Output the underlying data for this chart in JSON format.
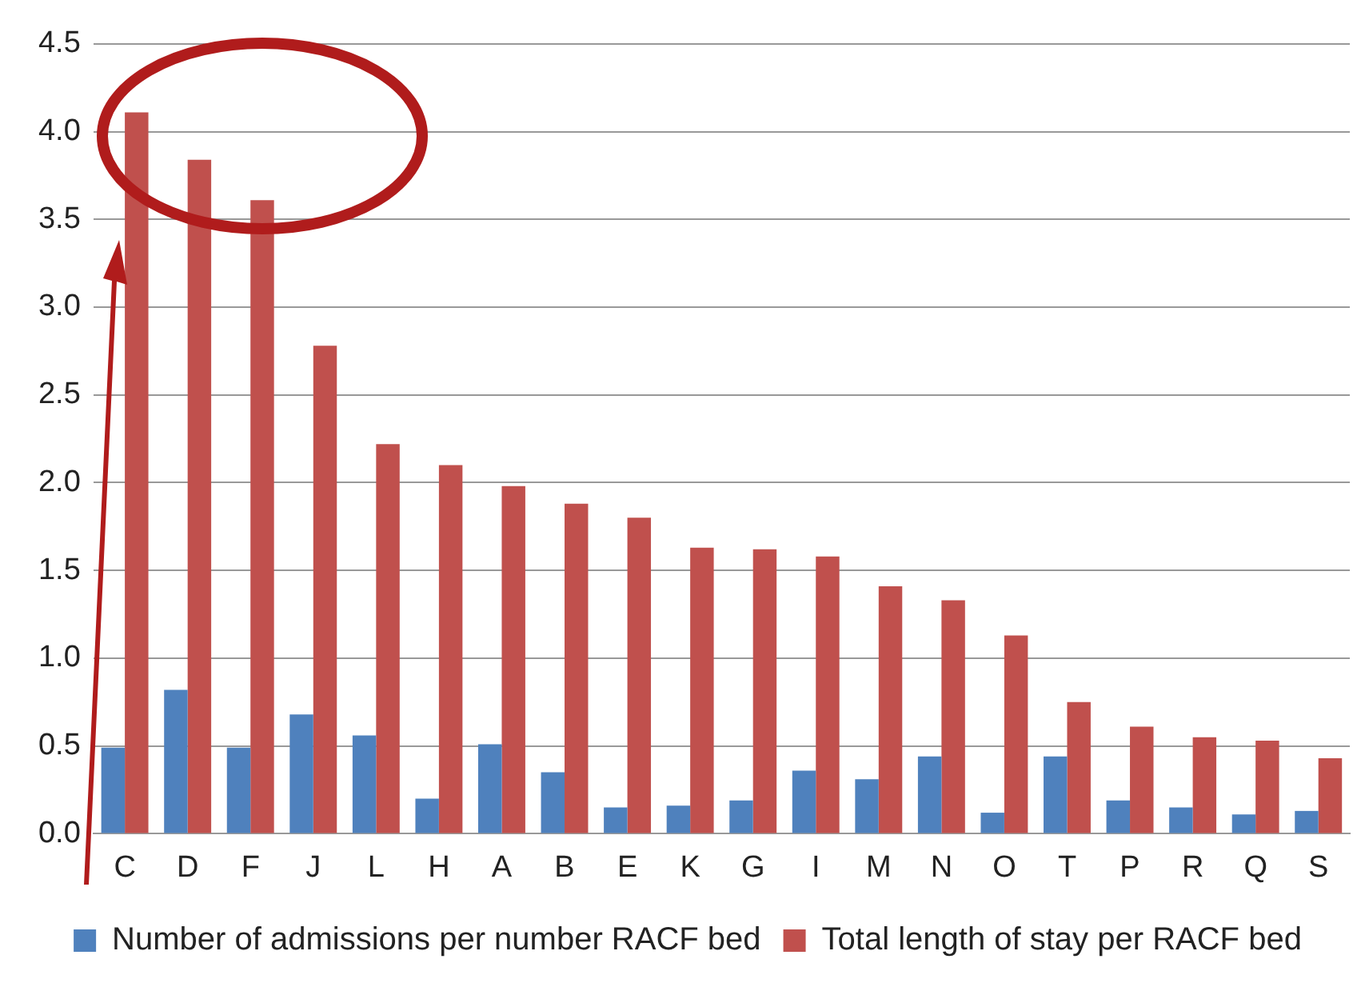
{
  "chart_data": {
    "type": "bar",
    "categories": [
      "C",
      "D",
      "F",
      "J",
      "L",
      "H",
      "A",
      "B",
      "E",
      "K",
      "G",
      "I",
      "M",
      "N",
      "O",
      "T",
      "P",
      "R",
      "Q",
      "S"
    ],
    "series": [
      {
        "name": "Number of admissions per number RACF bed",
        "color": "#4f81bd",
        "values": [
          0.49,
          0.82,
          0.49,
          0.68,
          0.56,
          0.2,
          0.51,
          0.35,
          0.15,
          0.16,
          0.19,
          0.36,
          0.31,
          0.44,
          0.12,
          0.44,
          0.19,
          0.15,
          0.11,
          0.13
        ]
      },
      {
        "name": "Total length of stay per RACF bed",
        "color": "#c0504d",
        "values": [
          4.11,
          3.84,
          3.61,
          2.78,
          2.22,
          2.1,
          1.98,
          1.88,
          1.8,
          1.63,
          1.62,
          1.58,
          1.41,
          1.33,
          1.13,
          0.75,
          0.61,
          0.55,
          0.53,
          0.43
        ]
      }
    ],
    "ylim": [
      0,
      4.5
    ],
    "yticks": [
      {
        "value": 0,
        "label": "0.0"
      },
      {
        "value": 0.5,
        "label": "0.5"
      },
      {
        "value": 1,
        "label": "1.0"
      },
      {
        "value": 1.5,
        "label": "1.5"
      },
      {
        "value": 2,
        "label": "2.0"
      },
      {
        "value": 2.5,
        "label": "2.5"
      },
      {
        "value": 3,
        "label": "3.0"
      },
      {
        "value": 3.5,
        "label": "3.5"
      },
      {
        "value": 4,
        "label": "4.0"
      },
      {
        "value": 4.5,
        "label": "4.5"
      }
    ],
    "grid": "y",
    "legend": "bottom"
  }
}
